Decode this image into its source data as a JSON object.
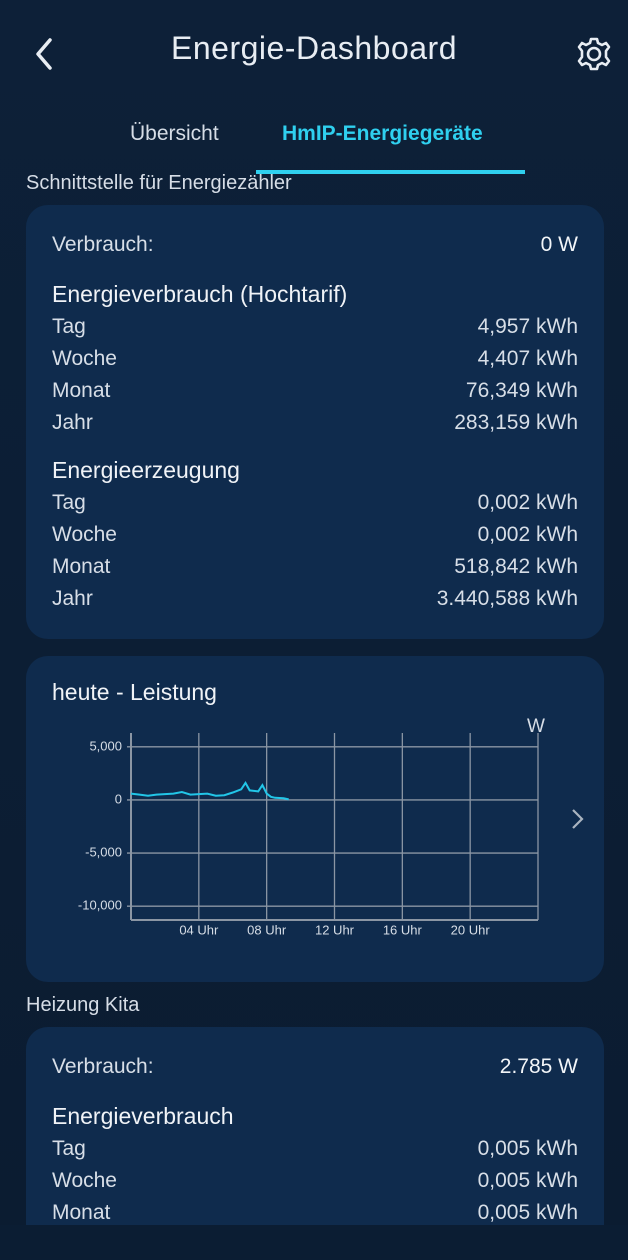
{
  "header": {
    "title": "Energie-Dashboard"
  },
  "tabs": [
    "Übersicht",
    "HmIP-Energiegeräte"
  ],
  "devices": [
    {
      "name": "Schnittstelle für Energiezähler",
      "consumption": {
        "label": "Verbrauch:",
        "value": "0 W"
      },
      "groups": [
        {
          "title": "Energieverbrauch (Hochtarif)",
          "rows": [
            [
              "Tag",
              "4,957 kWh"
            ],
            [
              "Woche",
              "4,407 kWh"
            ],
            [
              "Monat",
              "76,349 kWh"
            ],
            [
              "Jahr",
              "283,159 kWh"
            ]
          ]
        },
        {
          "title": "Energieerzeugung",
          "rows": [
            [
              "Tag",
              "0,002 kWh"
            ],
            [
              "Woche",
              "0,002 kWh"
            ],
            [
              "Monat",
              "518,842 kWh"
            ],
            [
              "Jahr",
              "3.440,588 kWh"
            ]
          ]
        }
      ]
    },
    {
      "name": "Heizung Kita",
      "consumption": {
        "label": "Verbrauch:",
        "value": "2.785 W"
      },
      "groups": [
        {
          "title": "Energieverbrauch",
          "rows": [
            [
              "Tag",
              "0,005 kWh"
            ],
            [
              "Woche",
              "0,005 kWh"
            ],
            [
              "Monat",
              "0,005 kWh"
            ]
          ]
        }
      ]
    }
  ],
  "chart_data": {
    "type": "line",
    "title": "heute - Leistung",
    "y_unit": "W",
    "x": [
      0,
      0.5,
      1,
      1.5,
      2,
      2.5,
      3,
      3.5,
      4,
      4.5,
      5,
      5.5,
      6,
      6.5,
      6.75,
      7,
      7.5,
      7.75,
      8,
      8.25,
      8.5,
      9,
      9.3
    ],
    "series": [
      {
        "name": "Leistung",
        "color": "#22c6e8",
        "values": [
          600,
          500,
          400,
          500,
          550,
          600,
          750,
          500,
          550,
          600,
          400,
          450,
          700,
          1000,
          1600,
          900,
          800,
          1400,
          600,
          300,
          200,
          150,
          50
        ]
      }
    ],
    "xlim": [
      0,
      24
    ],
    "xticks": [
      {
        "value": 4,
        "label": "04 Uhr"
      },
      {
        "value": 8,
        "label": "08 Uhr"
      },
      {
        "value": 12,
        "label": "12 Uhr"
      },
      {
        "value": 16,
        "label": "16 Uhr"
      },
      {
        "value": 20,
        "label": "20 Uhr"
      }
    ],
    "ylim": [
      -11300,
      6300
    ],
    "yticks": [
      {
        "value": 5000,
        "label": "5,000"
      },
      0,
      {
        "value": -5000,
        "label": "-5,000"
      },
      {
        "value": -10000,
        "label": "-10,000"
      }
    ],
    "grid": true
  }
}
